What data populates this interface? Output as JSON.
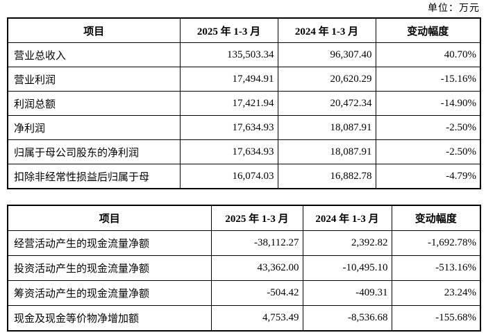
{
  "page": {
    "unit_label": "单位：万元",
    "background_color": "#ffffff",
    "text_color": "#000000",
    "border_color": "#000000"
  },
  "income_table": {
    "headers": [
      "项目",
      "2025 年 1-3 月",
      "2024 年 1-3 月",
      "变动幅度"
    ],
    "rows": [
      [
        "营业总收入",
        "135,503.34",
        "96,307.40",
        "40.70%"
      ],
      [
        "营业利润",
        "17,494.91",
        "20,620.29",
        "-15.16%"
      ],
      [
        "利润总额",
        "17,421.94",
        "20,472.34",
        "-14.90%"
      ],
      [
        "净利润",
        "17,634.93",
        "18,087.91",
        "-2.50%"
      ],
      [
        "归属于母公司股东的净利润",
        "17,634.93",
        "18,087.91",
        "-2.50%"
      ],
      [
        "扣除非经常性损益后归属于母",
        "16,074.03",
        "16,882.78",
        "-4.79%"
      ]
    ]
  },
  "cashflow_table": {
    "headers": [
      "项目",
      "2025 年 1-3 月",
      "2024 年 1-3 月",
      "变动幅度"
    ],
    "rows": [
      [
        "经营活动产生的现金流量净额",
        "-38,112.27",
        "2,392.82",
        "-1,692.78%"
      ],
      [
        "投资活动产生的现金流量净额",
        "43,362.00",
        "-10,495.10",
        "-513.16%"
      ],
      [
        "筹资活动产生的现金流量净额",
        "-504.42",
        "-409.31",
        "23.24%"
      ],
      [
        "现金及现金等价物净增加额",
        "4,753.49",
        "-8,536.68",
        "-155.68%"
      ]
    ]
  }
}
